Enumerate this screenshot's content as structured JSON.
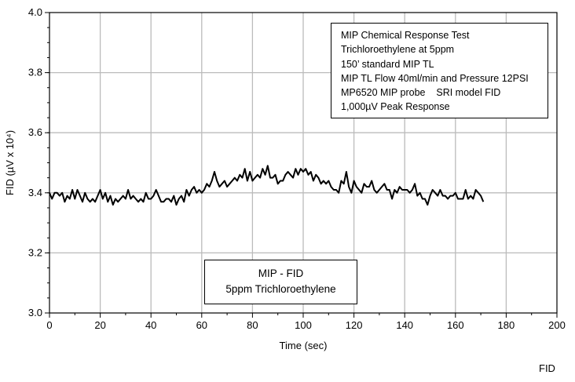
{
  "chart_data": {
    "type": "line",
    "xlabel": "Time (sec)",
    "ylabel": "FID (µV x 10⁴)",
    "xlim": [
      0,
      200
    ],
    "ylim": [
      3.0,
      4.0
    ],
    "xticks": [
      0,
      20,
      40,
      60,
      80,
      100,
      120,
      140,
      160,
      180,
      200
    ],
    "yticks": [
      "3.0",
      "3.2",
      "3.4",
      "3.6",
      "3.8",
      "4.0"
    ],
    "grid": true,
    "line_color": "#000000",
    "x_start": 0,
    "x_step": 1,
    "values": [
      3.4,
      3.38,
      3.4,
      3.4,
      3.39,
      3.4,
      3.37,
      3.39,
      3.38,
      3.41,
      3.38,
      3.41,
      3.39,
      3.37,
      3.4,
      3.38,
      3.37,
      3.38,
      3.37,
      3.39,
      3.41,
      3.38,
      3.4,
      3.37,
      3.39,
      3.36,
      3.38,
      3.37,
      3.38,
      3.39,
      3.38,
      3.41,
      3.38,
      3.39,
      3.38,
      3.37,
      3.38,
      3.37,
      3.4,
      3.38,
      3.38,
      3.39,
      3.41,
      3.39,
      3.37,
      3.37,
      3.38,
      3.38,
      3.37,
      3.39,
      3.36,
      3.38,
      3.39,
      3.37,
      3.41,
      3.39,
      3.41,
      3.42,
      3.4,
      3.41,
      3.4,
      3.41,
      3.43,
      3.42,
      3.44,
      3.47,
      3.44,
      3.42,
      3.43,
      3.44,
      3.42,
      3.43,
      3.44,
      3.45,
      3.44,
      3.46,
      3.45,
      3.48,
      3.44,
      3.47,
      3.44,
      3.45,
      3.46,
      3.45,
      3.48,
      3.46,
      3.49,
      3.45,
      3.45,
      3.46,
      3.43,
      3.44,
      3.44,
      3.46,
      3.47,
      3.46,
      3.45,
      3.48,
      3.46,
      3.48,
      3.47,
      3.48,
      3.46,
      3.47,
      3.44,
      3.46,
      3.45,
      3.43,
      3.44,
      3.43,
      3.44,
      3.42,
      3.41,
      3.41,
      3.4,
      3.44,
      3.43,
      3.47,
      3.42,
      3.4,
      3.44,
      3.42,
      3.41,
      3.4,
      3.43,
      3.42,
      3.42,
      3.44,
      3.41,
      3.4,
      3.41,
      3.42,
      3.43,
      3.41,
      3.41,
      3.38,
      3.41,
      3.4,
      3.42,
      3.41,
      3.41,
      3.41,
      3.4,
      3.41,
      3.43,
      3.39,
      3.4,
      3.38,
      3.38,
      3.36,
      3.39,
      3.41,
      3.4,
      3.39,
      3.41,
      3.39,
      3.39,
      3.38,
      3.39,
      3.39,
      3.4,
      3.38,
      3.38,
      3.38,
      3.41,
      3.38,
      3.39,
      3.38,
      3.41,
      3.4,
      3.39,
      3.37
    ],
    "annotations": {
      "info_lines": [
        "MIP Chemical Response Test",
        "Trichloroethylene at 5ppm",
        "150’ standard MIP TL",
        "MIP TL Flow 40ml/min and Pressure 12PSI",
        "MP6520 MIP probe    SRI model FID",
        "1,000µV Peak Response"
      ],
      "legend_lines": [
        "MIP - FID",
        "5ppm Trichloroethylene"
      ],
      "corner_label": "FID"
    }
  }
}
